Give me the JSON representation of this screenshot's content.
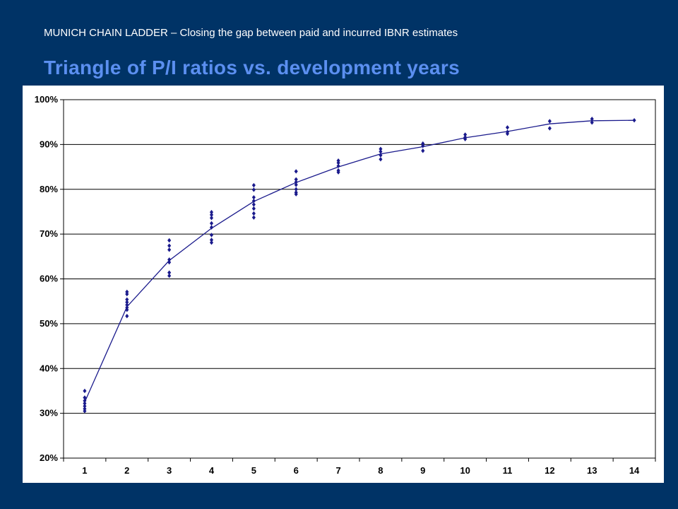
{
  "header": {
    "subtitle": "MUNICH CHAIN LADDER – Closing the gap between paid and incurred IBNR estimates",
    "title": "Triangle of P/I ratios vs. development years"
  },
  "colors": {
    "background": "#003366",
    "title": "#5b8ff0",
    "series": "#1a1a8c",
    "plot_background": "#ffffff",
    "gridline": "#000000"
  },
  "chart_data": {
    "type": "scatter",
    "title": "",
    "xlabel": "",
    "ylabel": "",
    "grid": true,
    "legend": "none",
    "x_categories": [
      "1",
      "2",
      "3",
      "4",
      "5",
      "6",
      "7",
      "8",
      "9",
      "10",
      "11",
      "12",
      "13",
      "14"
    ],
    "y_ticks": [
      "20%",
      "30%",
      "40%",
      "50%",
      "60%",
      "70%",
      "80%",
      "90%",
      "100%"
    ],
    "ylim": [
      0.2,
      1.0
    ],
    "series": [
      {
        "marker": "diamond",
        "points": [
          [
            1,
            0.35
          ],
          [
            1,
            0.335
          ],
          [
            1,
            0.328
          ],
          [
            1,
            0.322
          ],
          [
            1,
            0.316
          ],
          [
            1,
            0.31
          ],
          [
            1,
            0.305
          ],
          [
            2,
            0.571
          ],
          [
            2,
            0.566
          ],
          [
            2,
            0.554
          ],
          [
            2,
            0.548
          ],
          [
            2,
            0.542
          ],
          [
            2,
            0.536
          ],
          [
            2,
            0.531
          ],
          [
            2,
            0.517
          ],
          [
            3,
            0.686
          ],
          [
            3,
            0.674
          ],
          [
            3,
            0.665
          ],
          [
            3,
            0.643
          ],
          [
            3,
            0.637
          ],
          [
            3,
            0.614
          ],
          [
            3,
            0.607
          ],
          [
            4,
            0.749
          ],
          [
            4,
            0.743
          ],
          [
            4,
            0.736
          ],
          [
            4,
            0.724
          ],
          [
            4,
            0.715
          ],
          [
            4,
            0.698
          ],
          [
            4,
            0.687
          ],
          [
            4,
            0.681
          ],
          [
            5,
            0.809
          ],
          [
            5,
            0.799
          ],
          [
            5,
            0.782
          ],
          [
            5,
            0.774
          ],
          [
            5,
            0.766
          ],
          [
            5,
            0.757
          ],
          [
            5,
            0.746
          ],
          [
            5,
            0.737
          ],
          [
            6,
            0.84
          ],
          [
            6,
            0.822
          ],
          [
            6,
            0.816
          ],
          [
            6,
            0.81
          ],
          [
            6,
            0.8
          ],
          [
            6,
            0.793
          ],
          [
            6,
            0.789
          ],
          [
            7,
            0.864
          ],
          [
            7,
            0.859
          ],
          [
            7,
            0.852
          ],
          [
            7,
            0.842
          ],
          [
            7,
            0.838
          ],
          [
            8,
            0.89
          ],
          [
            8,
            0.884
          ],
          [
            8,
            0.876
          ],
          [
            8,
            0.867
          ],
          [
            9,
            0.902
          ],
          [
            9,
            0.897
          ],
          [
            9,
            0.886
          ],
          [
            10,
            0.922
          ],
          [
            10,
            0.916
          ],
          [
            10,
            0.912
          ],
          [
            11,
            0.938
          ],
          [
            11,
            0.928
          ],
          [
            11,
            0.924
          ],
          [
            12,
            0.952
          ],
          [
            12,
            0.936
          ],
          [
            13,
            0.957
          ],
          [
            13,
            0.949
          ],
          [
            14,
            0.954
          ]
        ]
      },
      {
        "type": "line",
        "x": [
          1,
          2,
          3,
          4,
          5,
          6,
          7,
          8,
          9,
          10,
          11,
          12,
          13,
          14
        ],
        "values": [
          0.325,
          0.538,
          0.641,
          0.713,
          0.773,
          0.815,
          0.85,
          0.879,
          0.895,
          0.915,
          0.929,
          0.946,
          0.953,
          0.954
        ]
      }
    ]
  }
}
